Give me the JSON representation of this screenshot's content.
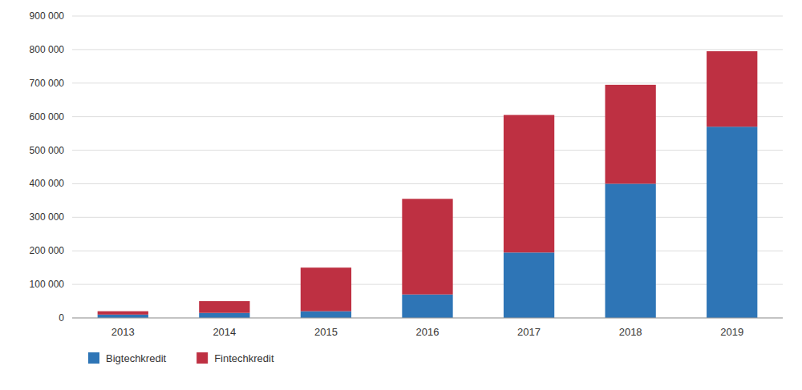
{
  "chart_data": {
    "type": "bar",
    "stacked": true,
    "categories": [
      "2013",
      "2014",
      "2015",
      "2016",
      "2017",
      "2018",
      "2019"
    ],
    "series": [
      {
        "name": "Bigtechkredit",
        "color": "#2E75B6",
        "values": [
          10000,
          15000,
          20000,
          70000,
          195000,
          400000,
          570000
        ]
      },
      {
        "name": "Fintechkredit",
        "color": "#BE3042",
        "values": [
          10000,
          35000,
          130000,
          285000,
          410000,
          295000,
          225000
        ]
      }
    ],
    "ylim": [
      0,
      900000
    ],
    "yticks": [
      0,
      {
        "value": 100000,
        "label": "100 000"
      },
      {
        "value": 200000,
        "label": "200 000"
      },
      {
        "value": 300000,
        "label": "300 000"
      },
      {
        "value": 400000,
        "label": "400 000"
      },
      {
        "value": 500000,
        "label": "500 000"
      },
      {
        "value": 600000,
        "label": "600 000"
      },
      {
        "value": 700000,
        "label": "700 000"
      },
      {
        "value": 800000,
        "label": "800 000"
      },
      {
        "value": 900000,
        "label": "900 000"
      }
    ],
    "grid": true,
    "legend": "bottom"
  }
}
